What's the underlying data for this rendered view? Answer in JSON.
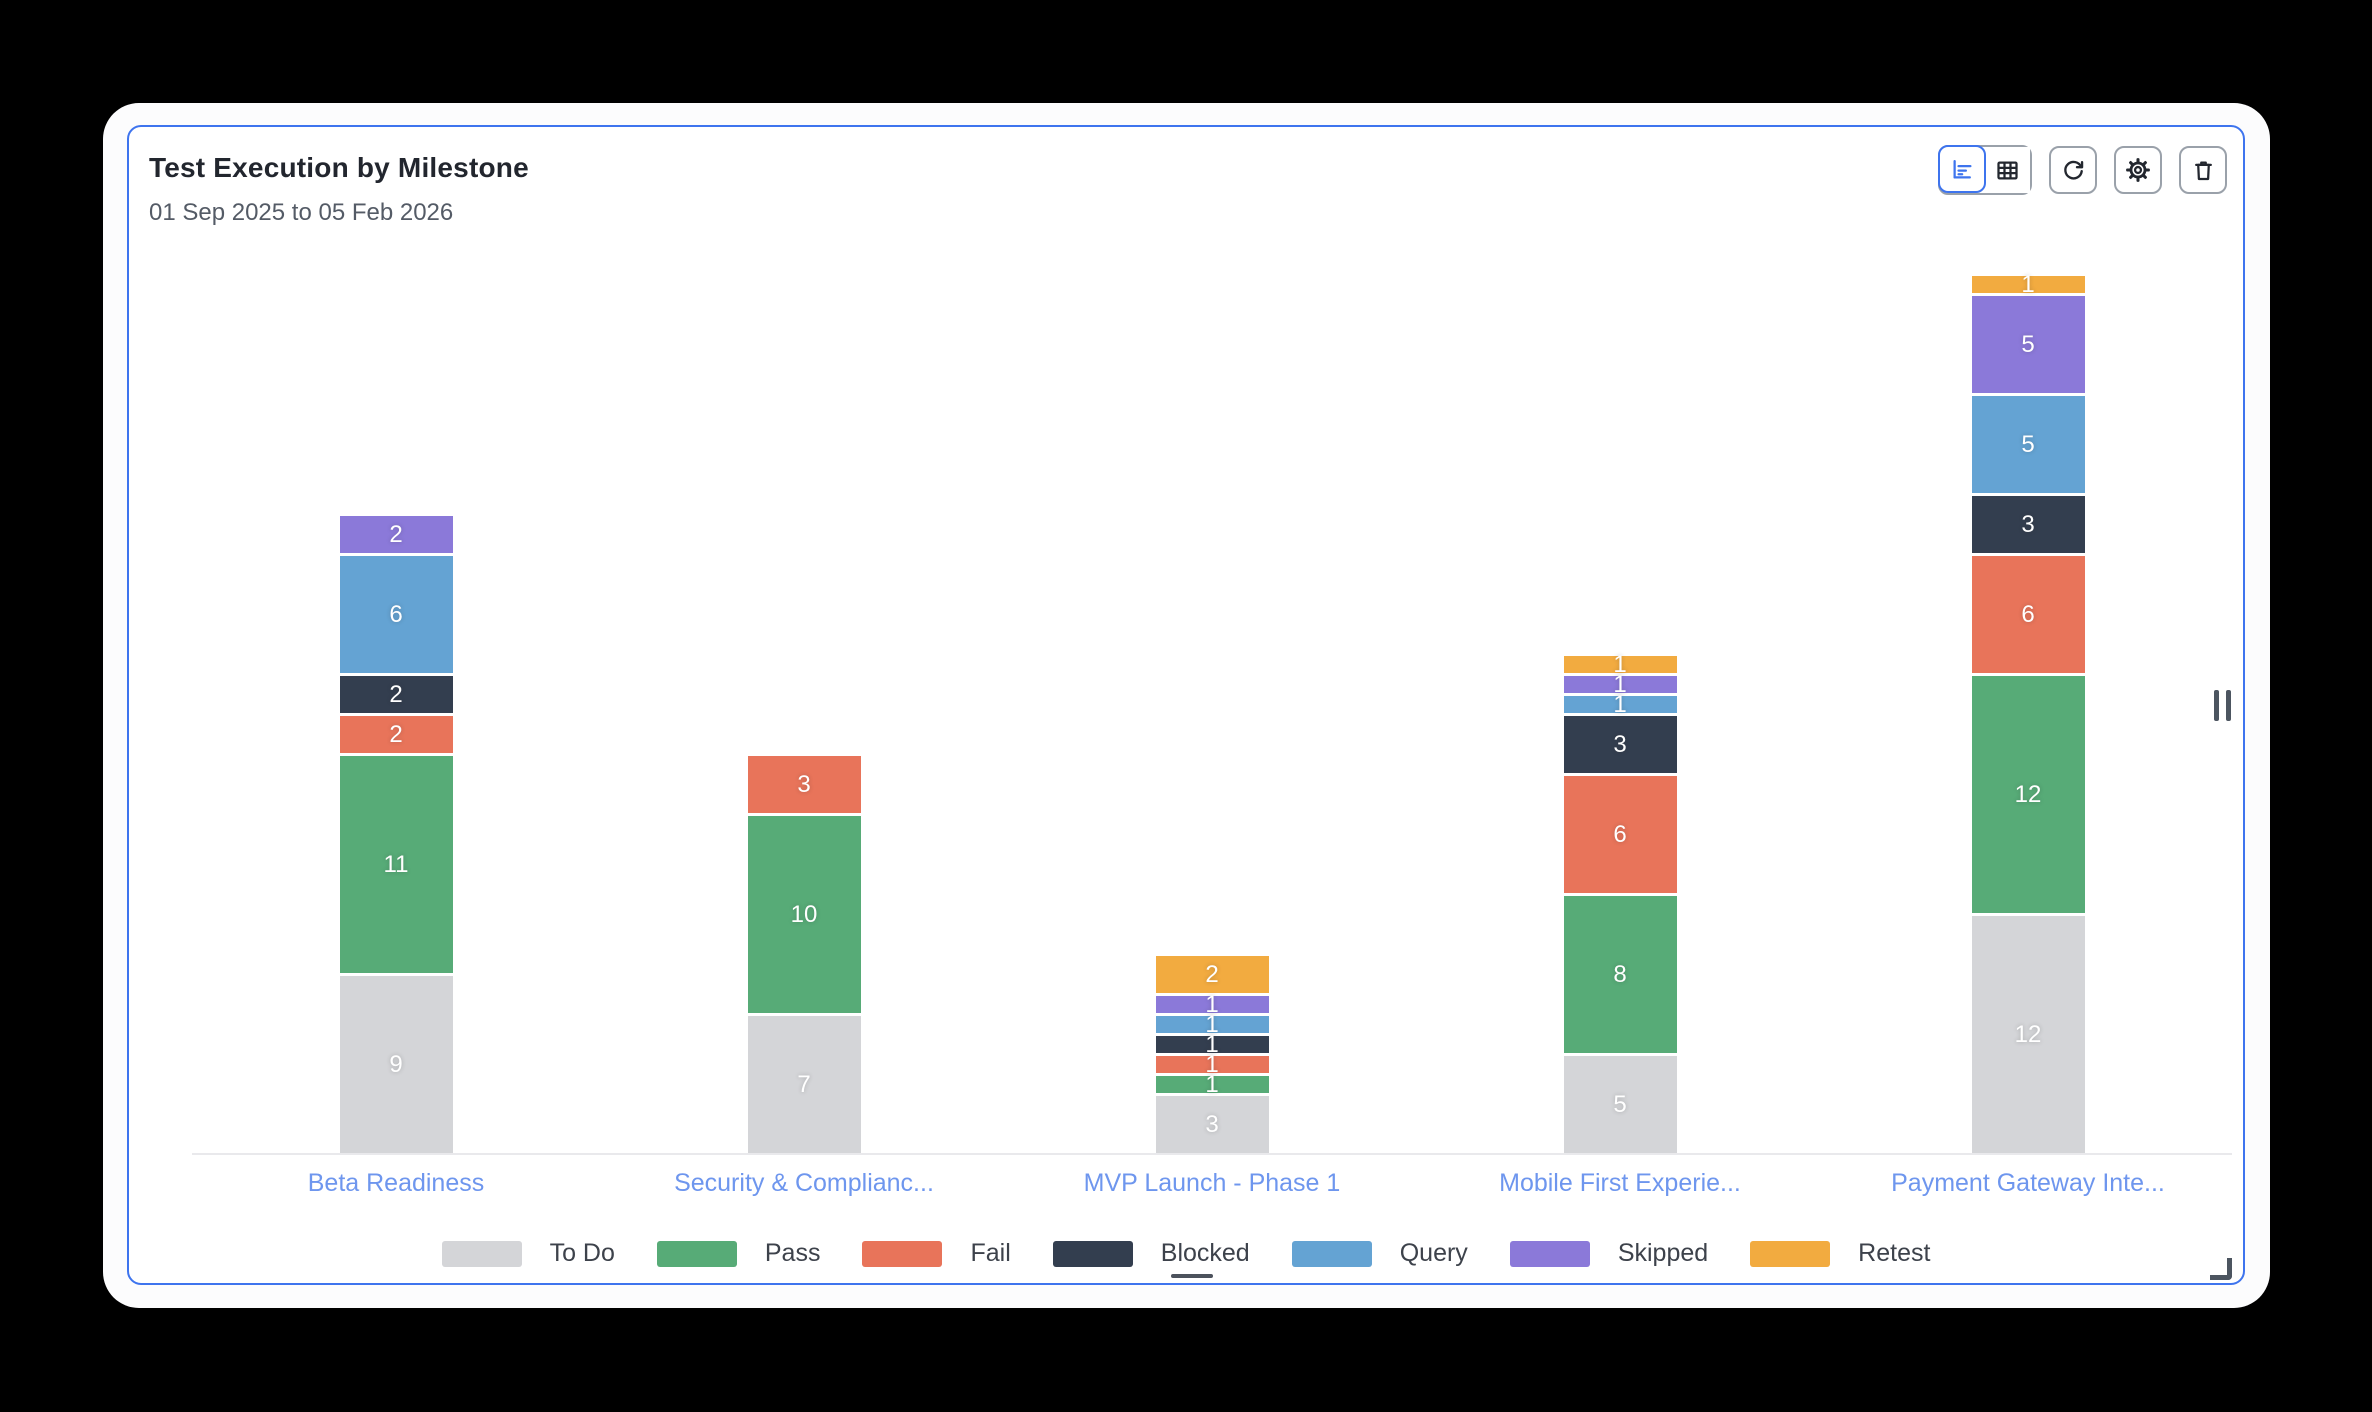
{
  "header": {
    "title": "Test Execution by Milestone",
    "subtitle": "01 Sep 2025 to 05 Feb 2026"
  },
  "toolbar": {
    "buttons": [
      {
        "id": "chart-view",
        "icon": "bar-chart-icon",
        "active": true
      },
      {
        "id": "table-view",
        "icon": "table-grid-icon",
        "active": false
      },
      {
        "id": "refresh",
        "icon": "refresh-icon"
      },
      {
        "id": "settings",
        "icon": "gear-icon"
      },
      {
        "id": "delete",
        "icon": "trash-icon"
      }
    ]
  },
  "chart_data": {
    "type": "bar",
    "stacked": true,
    "title": "Test Execution by Milestone",
    "subtitle": "01 Sep 2025 to 05 Feb 2026",
    "categories": [
      "Beta Readiness",
      "Security & Complianc...",
      "MVP Launch - Phase 1",
      "Mobile First Experie...",
      "Payment Gateway Inte..."
    ],
    "series": [
      {
        "name": "To Do",
        "color": "#d4d5d8",
        "values": [
          9,
          7,
          3,
          5,
          12
        ]
      },
      {
        "name": "Pass",
        "color": "#57ab77",
        "values": [
          11,
          10,
          1,
          8,
          12
        ]
      },
      {
        "name": "Fail",
        "color": "#e8745a",
        "values": [
          2,
          3,
          1,
          6,
          6
        ]
      },
      {
        "name": "Blocked",
        "color": "#333e4f",
        "values": [
          2,
          0,
          1,
          3,
          3
        ]
      },
      {
        "name": "Query",
        "color": "#64a3d3",
        "values": [
          6,
          0,
          1,
          1,
          5
        ]
      },
      {
        "name": "Skipped",
        "color": "#8b79d9",
        "values": [
          2,
          0,
          1,
          1,
          5
        ]
      },
      {
        "name": "Retest",
        "color": "#f2ab40",
        "values": [
          0,
          0,
          2,
          1,
          1
        ]
      }
    ],
    "totals": [
      32,
      20,
      10,
      25,
      44
    ],
    "value_labels": "inside-white",
    "legend_position": "bottom",
    "legend_entries": [
      "To Do",
      "Pass",
      "Fail",
      "Blocked",
      "Query",
      "Skipped",
      "Retest"
    ],
    "ylim": [
      0,
      44
    ],
    "grid": false,
    "category_label_color": "#6e96ee"
  },
  "colors": {
    "accent_blue": "#3e74ee",
    "card_bg": "#fcfcfd",
    "page_bg": "#000000",
    "axis_line": "#e9e9ec",
    "title_text": "#22262e",
    "subtitle_text": "#545b66",
    "legend_text": "#3d424b"
  },
  "handles": {
    "right": "vertical-grip-handle",
    "corner": "corner-resize-handle",
    "legend_dash_under": "Blocked"
  }
}
